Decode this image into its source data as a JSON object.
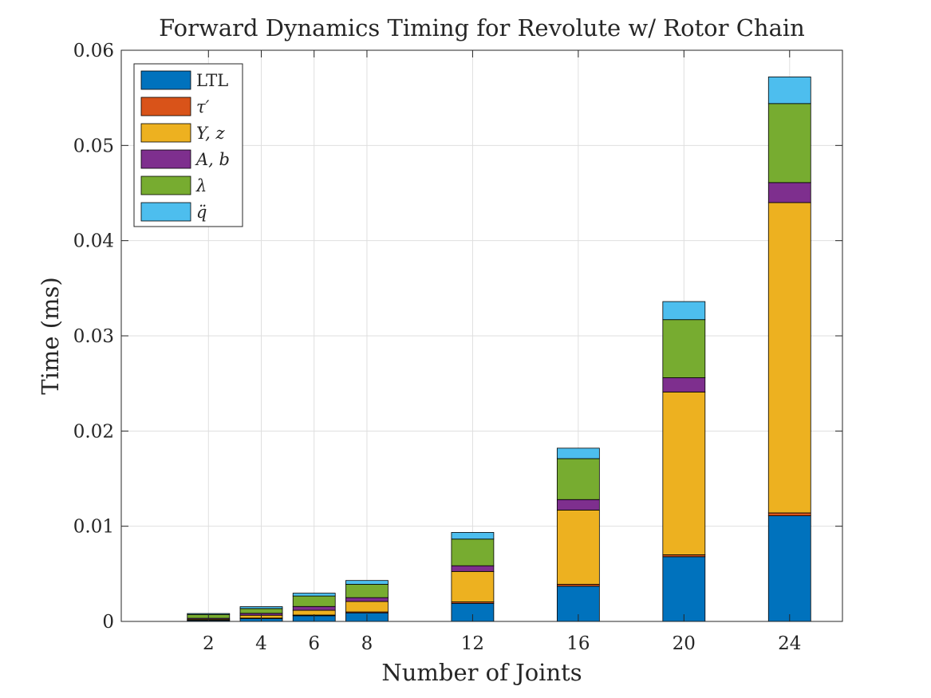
{
  "chart_data": {
    "type": "bar",
    "stacked": true,
    "title": "Forward Dynamics Timing for Revolute w/ Rotor Chain",
    "xlabel": "Number of Joints",
    "ylabel": "Time (ms)",
    "x": [
      2,
      4,
      6,
      8,
      12,
      16,
      20,
      24
    ],
    "xticks": [
      "2",
      "4",
      "6",
      "8",
      "12",
      "16",
      "20",
      "24"
    ],
    "xlim": [
      -1.3,
      26
    ],
    "ylim": [
      0,
      0.06
    ],
    "yticks": [
      "0",
      "0.01",
      "0.02",
      "0.03",
      "0.04",
      "0.05",
      "0.06"
    ],
    "grid": true,
    "legend_position": "top-left",
    "series": [
      {
        "name": "LTL",
        "color": "#0072BD",
        "values": [
          0.0001,
          0.0003,
          0.0006,
          0.0009,
          0.0019,
          0.0037,
          0.0068,
          0.0111
        ]
      },
      {
        "name": "τ′",
        "color": "#D95319",
        "values": [
          3e-05,
          5e-05,
          7e-05,
          0.0001,
          0.00015,
          0.0002,
          0.0002,
          0.0003
        ]
      },
      {
        "name": "Y, z",
        "color": "#EDB120",
        "values": [
          0.0001,
          0.0003,
          0.0005,
          0.0011,
          0.0032,
          0.0078,
          0.0171,
          0.0326
        ]
      },
      {
        "name": "A, b",
        "color": "#7E2F8E",
        "values": [
          0.0001,
          0.0002,
          0.0004,
          0.0004,
          0.0006,
          0.0011,
          0.0015,
          0.0021
        ]
      },
      {
        "name": "λ",
        "color": "#77AC30",
        "values": [
          0.0004,
          0.0005,
          0.0011,
          0.0014,
          0.0028,
          0.0043,
          0.0061,
          0.0083
        ]
      },
      {
        "name": "q̈",
        "color": "#4DBEEE",
        "values": [
          0.0001,
          0.0002,
          0.0003,
          0.0004,
          0.0007,
          0.0011,
          0.0019,
          0.0028
        ]
      }
    ]
  }
}
